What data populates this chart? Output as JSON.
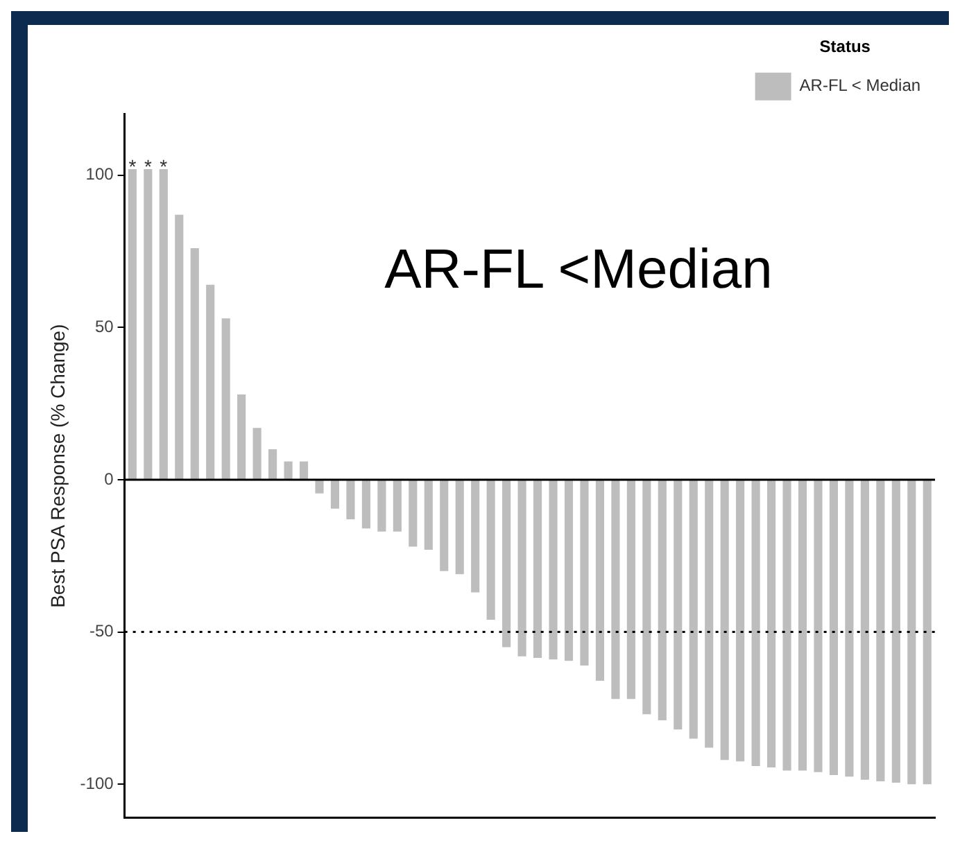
{
  "chart_data": {
    "type": "bar",
    "categories": [
      null,
      null,
      null,
      null,
      null,
      null,
      null,
      null,
      null,
      null,
      null,
      null,
      null,
      null,
      null,
      null,
      null,
      null,
      null,
      null,
      null,
      null,
      null,
      null,
      null,
      null,
      null,
      null,
      null,
      null,
      null,
      null,
      null,
      null,
      null,
      null,
      null,
      null,
      null,
      null,
      null,
      null,
      null,
      null,
      null,
      null,
      null,
      null,
      null,
      null,
      null,
      null
    ],
    "series": [
      {
        "name": "AR-FL < Median",
        "color": "#bdbdbd",
        "values": [
          102,
          102,
          102,
          87,
          76,
          64,
          53,
          28,
          17,
          10,
          6,
          6,
          -4.5,
          -9.5,
          -13,
          -16,
          -17,
          -17,
          -22,
          -23,
          -30,
          -31,
          -37,
          -46,
          -55,
          -58,
          -58.5,
          -59,
          -59.5,
          -61,
          -66,
          -72,
          -72,
          -77,
          -79,
          -82,
          -85,
          -88,
          -92,
          -92.5,
          -94,
          -94.5,
          -95.5,
          -95.5,
          -96,
          -97,
          -97.5,
          -98.5,
          -99,
          -99.5,
          -100,
          -100
        ]
      }
    ],
    "ylabel": "Best PSA Response (% Change)",
    "legend_title": "Status",
    "legend": "top right",
    "ylim": [
      -111,
      120
    ],
    "yticks": [
      -100,
      -50,
      0,
      50,
      100
    ],
    "tick_labels": "y",
    "grid": false,
    "ref_lines": [
      {
        "axis": "y",
        "value": 0,
        "color": "#000000",
        "line_style": "solid"
      },
      {
        "axis": "y",
        "value": -50,
        "color": "#000000",
        "line_style": "dotted"
      }
    ],
    "annotations": [
      {
        "text": "*",
        "y": 102
      },
      {
        "text": "*",
        "y": 102
      },
      {
        "text": "*",
        "y": 102
      },
      "AR-FL <Median"
    ]
  }
}
